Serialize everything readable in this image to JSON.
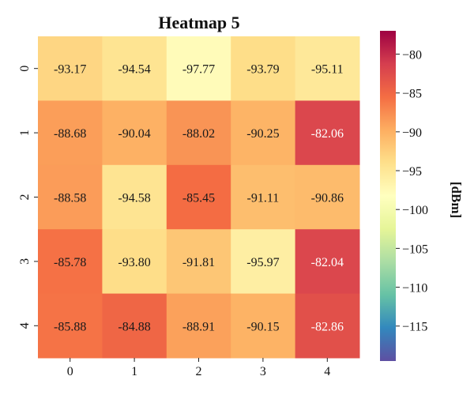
{
  "chart_data": {
    "type": "heatmap",
    "title": "Heatmap 5",
    "x_categories": [
      "0",
      "1",
      "2",
      "3",
      "4"
    ],
    "y_categories": [
      "0",
      "1",
      "2",
      "3",
      "4"
    ],
    "values": [
      [
        -93.17,
        -94.54,
        -97.77,
        -93.79,
        -95.11
      ],
      [
        -88.68,
        -90.04,
        -88.02,
        -90.25,
        -82.06
      ],
      [
        -88.58,
        -94.58,
        -85.45,
        -91.11,
        -90.86
      ],
      [
        -85.78,
        -93.8,
        -91.81,
        -95.97,
        -82.04
      ],
      [
        -85.88,
        -84.88,
        -88.91,
        -90.15,
        -82.86
      ]
    ],
    "labels": [
      [
        "-93.17",
        "-94.54",
        "-97.77",
        "-93.79",
        "-95.11"
      ],
      [
        "-88.68",
        "-90.04",
        "-88.02",
        "-90.25",
        "-82.06"
      ],
      [
        "-88.58",
        "-94.58",
        "-85.45",
        "-91.11",
        "-90.86"
      ],
      [
        "-85.78",
        "-93.80",
        "-91.81",
        "-95.97",
        "-82.04"
      ],
      [
        "-85.88",
        "-84.88",
        "-88.91",
        "-90.15",
        "-82.86"
      ]
    ],
    "colorbar": {
      "label": "[dBm]",
      "vmin": -119.5,
      "vmax": -77,
      "ticks": [
        -80,
        -85,
        -90,
        -95,
        -100,
        -105,
        -110,
        -115
      ],
      "tick_labels": [
        "−80",
        "−85",
        "−90",
        "−95",
        "−100",
        "−105",
        "−110",
        "−115"
      ],
      "colormap": "Spectral_r",
      "colors": [
        "#5e4fa2",
        "#3288bd",
        "#66c2a5",
        "#abdda4",
        "#e6f598",
        "#ffffbf",
        "#fee08b",
        "#fdae61",
        "#f46d43",
        "#d53e4f",
        "#9e0142"
      ]
    }
  }
}
